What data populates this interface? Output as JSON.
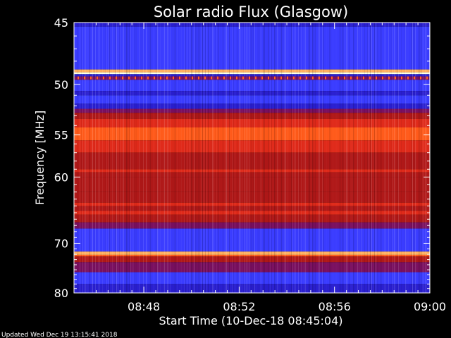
{
  "chart_data": {
    "type": "heatmap",
    "title": "Solar radio Flux (Glasgow)",
    "xlabel": "Start Time (10-Dec-18 08:45:04)",
    "ylabel": "Frequency [MHz]",
    "x_ticks": [
      "08:48",
      "08:52",
      "08:56",
      "09:00"
    ],
    "x_tick_minutes": [
      2.93,
      6.93,
      10.93,
      14.93
    ],
    "xlim_minutes": [
      0,
      14.93
    ],
    "y_ticks": [
      45,
      50,
      55,
      60,
      70,
      80
    ],
    "ylim": [
      45,
      80
    ],
    "y_scale": "reciprocal",
    "colormap": [
      "#1a0066",
      "#2a1fd0",
      "#3a3cff",
      "#7a1060",
      "#b01818",
      "#e02a1a",
      "#ff5a1a",
      "#ffb060",
      "#ffffe0"
    ],
    "bands": [
      {
        "from": 45.0,
        "to": 45.3,
        "level": 1
      },
      {
        "from": 45.3,
        "to": 48.7,
        "level": 2
      },
      {
        "from": 48.7,
        "to": 48.95,
        "level": 7
      },
      {
        "from": 48.95,
        "to": 49.1,
        "level": 8
      },
      {
        "from": 49.1,
        "to": 49.3,
        "level": 1
      },
      {
        "from": 49.3,
        "to": 49.6,
        "level": 3
      },
      {
        "from": 49.6,
        "to": 50.6,
        "level": 2
      },
      {
        "from": 50.6,
        "to": 51.0,
        "level": 1
      },
      {
        "from": 51.0,
        "to": 51.8,
        "level": 2
      },
      {
        "from": 51.8,
        "to": 52.3,
        "level": 1
      },
      {
        "from": 52.3,
        "to": 52.7,
        "level": 3
      },
      {
        "from": 52.7,
        "to": 53.3,
        "level": 4
      },
      {
        "from": 53.3,
        "to": 54.2,
        "level": 5
      },
      {
        "from": 54.2,
        "to": 55.6,
        "level": 6
      },
      {
        "from": 55.6,
        "to": 57.0,
        "level": 5
      },
      {
        "from": 57.0,
        "to": 59.0,
        "level": 4
      },
      {
        "from": 59.0,
        "to": 59.4,
        "level": 5
      },
      {
        "from": 59.4,
        "to": 60.0,
        "level": 4
      },
      {
        "from": 60.0,
        "to": 62.0,
        "level": 4
      },
      {
        "from": 62.0,
        "to": 63.5,
        "level": 4
      },
      {
        "from": 63.5,
        "to": 64.0,
        "level": 5
      },
      {
        "from": 64.0,
        "to": 64.7,
        "level": 4
      },
      {
        "from": 64.7,
        "to": 65.3,
        "level": 5
      },
      {
        "from": 65.3,
        "to": 66.5,
        "level": 4
      },
      {
        "from": 66.5,
        "to": 67.5,
        "level": 3
      },
      {
        "from": 67.5,
        "to": 71.5,
        "level": 2
      },
      {
        "from": 71.5,
        "to": 72.1,
        "level": 7
      },
      {
        "from": 72.1,
        "to": 72.4,
        "level": 6
      },
      {
        "from": 72.4,
        "to": 73.5,
        "level": 4
      },
      {
        "from": 73.5,
        "to": 75.5,
        "level": 3
      },
      {
        "from": 75.5,
        "to": 78.0,
        "level": 2
      },
      {
        "from": 78.0,
        "to": 80.0,
        "level": 1
      }
    ]
  },
  "footer": {
    "updated": "Updated Wed Dec 19 13:15:41 2018"
  }
}
